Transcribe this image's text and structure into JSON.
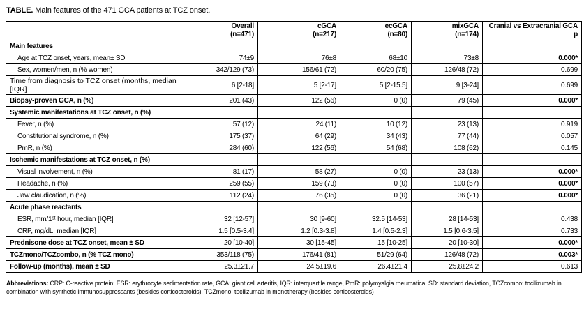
{
  "title": {
    "prefix": "TABLE.",
    "text": " Main features of the 471 GCA patients at TCZ onset."
  },
  "table": {
    "header": {
      "columns": [
        {
          "line1": "Overall",
          "line2": "(n=471)"
        },
        {
          "line1": "cGCA",
          "line2": "(n=217)"
        },
        {
          "line1": "ecGCA",
          "line2": "(n=80)"
        },
        {
          "line1": "mixGCA",
          "line2": "(n=174)"
        },
        {
          "line1": "Cranial vs Extracranial GCA",
          "line2": "p"
        }
      ]
    },
    "rows": [
      {
        "label": "Main features",
        "style": "section",
        "values": [
          "",
          "",
          "",
          ""
        ],
        "p": "",
        "p_bold": false
      },
      {
        "label": "Age at TCZ onset, years, mean± SD",
        "style": "item",
        "values": [
          "74±9",
          "76±8",
          "68±10",
          "73±8"
        ],
        "p": "0.000*",
        "p_bold": true
      },
      {
        "label": "Sex, women/men, n (% women)",
        "style": "item",
        "values": [
          "342/129 (73)",
          "156/61 (72)",
          "60/20 (75)",
          "126/48 (72)"
        ],
        "p": "0.699",
        "p_bold": false
      },
      {
        "label": "Time from diagnosis to TCZ onset (months, median [IQR]",
        "style": "plain",
        "values": [
          "6 [2-18]",
          "5 [2-17]",
          "5 [2-15.5]",
          "9 [3-24]"
        ],
        "p": "0.699",
        "p_bold": false
      },
      {
        "label": "Biopsy-proven GCA, n (%)",
        "style": "bold",
        "values": [
          "201 (43)",
          "122 (56)",
          "0 (0)",
          "79 (45)"
        ],
        "p": "0.000*",
        "p_bold": true
      },
      {
        "label": "Systemic manifestations at TCZ onset, n (%)",
        "style": "section",
        "values": [
          "",
          "",
          "",
          ""
        ],
        "p": "",
        "p_bold": false
      },
      {
        "label": "Fever, n (%)",
        "style": "item",
        "values": [
          "57 (12)",
          "24 (11)",
          "10 (12)",
          "23 (13)"
        ],
        "p": "0.919",
        "p_bold": false
      },
      {
        "label": "Constitutional syndrome, n (%)",
        "style": "item",
        "values": [
          "175 (37)",
          "64 (29)",
          "34 (43)",
          "77 (44)"
        ],
        "p": "0.057",
        "p_bold": false
      },
      {
        "label": "PmR, n (%)",
        "style": "item",
        "values": [
          "284 (60)",
          "122 (56)",
          "54 (68)",
          "108 (62)"
        ],
        "p": "0.145",
        "p_bold": false
      },
      {
        "label": "Ischemic manifestations at TCZ onset, n (%)",
        "style": "section",
        "values": [
          "",
          "",
          "",
          ""
        ],
        "p": "",
        "p_bold": false
      },
      {
        "label": "Visual involvement, n (%)",
        "style": "item",
        "values": [
          "81 (17)",
          "58 (27)",
          "0 (0)",
          "23 (13)"
        ],
        "p": "0.000*",
        "p_bold": true
      },
      {
        "label": "Headache, n (%)",
        "style": "item",
        "values": [
          "259 (55)",
          "159 (73)",
          "0 (0)",
          "100 (57)"
        ],
        "p": "0.000*",
        "p_bold": true
      },
      {
        "label": "Jaw claudication, n (%)",
        "style": "item",
        "values": [
          "112 (24)",
          "76 (35)",
          "0 (0)",
          "36 (21)"
        ],
        "p": "0.000*",
        "p_bold": true
      },
      {
        "label": "Acute phase reactants",
        "style": "section",
        "values": [
          "",
          "",
          "",
          ""
        ],
        "p": "",
        "p_bold": false
      },
      {
        "label": "ESR, mm/1ˢᵗ hour, median [IQR]",
        "style": "item",
        "values": [
          "32 [12-57]",
          "30 [9-60]",
          "32.5 [14-53]",
          "28 [14-53]"
        ],
        "p": "0.438",
        "p_bold": false
      },
      {
        "label": "CRP, mg/dL, median [IQR]",
        "style": "item",
        "values": [
          "1.5 [0.5-3.4]",
          "1.2 [0.3-3.8]",
          "1.4 [0.5-2.3]",
          "1.5 [0.6-3.5]"
        ],
        "p": "0.733",
        "p_bold": false
      },
      {
        "label": "Prednisone dose at TCZ onset, mean ± SD",
        "style": "bold",
        "values": [
          "20 [10-40]",
          "30 [15-45]",
          "15 [10-25]",
          "20 [10-30]"
        ],
        "p": "0.000*",
        "p_bold": true
      },
      {
        "label": "TCZmono/TCZcombo, n (% TCZ mono)",
        "style": "bold",
        "values": [
          "353/118 (75)",
          "176/41 (81)",
          "51/29 (64)",
          "126/48 (72)"
        ],
        "p": "0.003*",
        "p_bold": true
      },
      {
        "label": "Follow-up (months), mean ± SD",
        "style": "bold",
        "values": [
          "25.3±21.7",
          "24.5±19.6",
          "26.4±21.4",
          "25.8±24.2"
        ],
        "p": "0.613",
        "p_bold": false
      }
    ]
  },
  "footnote": {
    "label": "Abbreviations:",
    "text": " CRP: C-reactive protein; ESR: erythrocyte sedimentation rate, GCA: giant cell arteritis, IQR: interquartile range, PmR: polymyalgia rheumatica; SD: standard deviation, TCZcombo: tocilizumab in combination with synthetic immunosuppressants (besides corticosteroids), TCZmono: tocilizumab in monotherapy (besides corticosteroids)"
  }
}
